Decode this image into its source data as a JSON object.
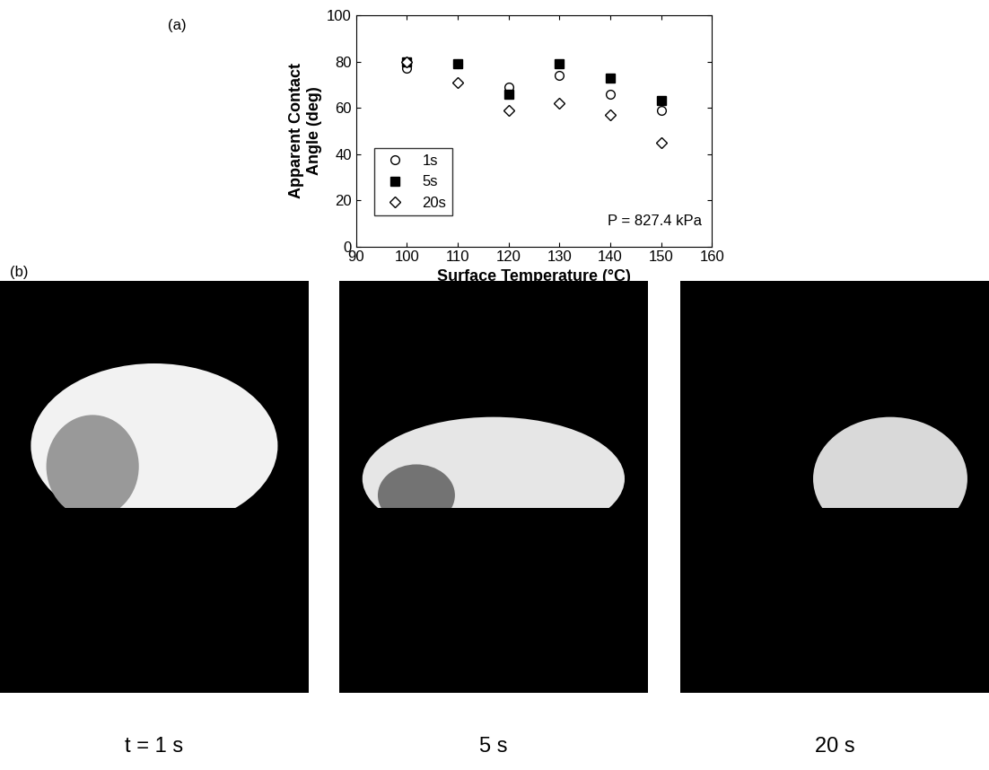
{
  "chart_data": {
    "type": "scatter",
    "x_label": "Surface Temperature (°C)",
    "y_label": "Apparent Contact\nAngle (deg)",
    "x": [
      100,
      110,
      120,
      130,
      140,
      150
    ],
    "series": [
      {
        "name": "1s",
        "color": "#000000",
        "marker": "open_circle",
        "values": [
          77,
          79,
          69,
          74,
          66,
          59
        ]
      },
      {
        "name": "5s",
        "color": "#000000",
        "marker": "filled_square",
        "values": [
          80,
          79,
          66,
          79,
          73,
          63
        ]
      },
      {
        "name": "20s",
        "color": "#000000",
        "marker": "open_diamond",
        "values": [
          80,
          71,
          59,
          62,
          57,
          45
        ]
      }
    ],
    "xlim": [
      90,
      160
    ],
    "xticks": [
      90,
      100,
      110,
      120,
      130,
      140,
      150,
      160
    ],
    "ylim": [
      0,
      100
    ],
    "yticks": [
      0,
      20,
      40,
      60,
      80,
      100
    ],
    "legend": "lower left",
    "annotations": [
      "P = 827.4 kPa"
    ]
  },
  "panel_labels": [
    "(a)",
    "(b)"
  ],
  "images": [
    {
      "caption": "t = 1 s"
    },
    {
      "caption": "5 s"
    },
    {
      "caption": "20 s"
    }
  ]
}
